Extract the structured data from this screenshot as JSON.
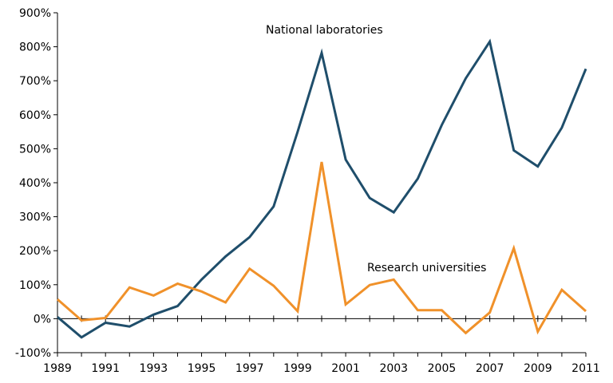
{
  "chart_data": {
    "type": "line",
    "x": [
      1989,
      1990,
      1991,
      1992,
      1993,
      1994,
      1995,
      1996,
      1997,
      1998,
      1999,
      2000,
      2001,
      2002,
      2003,
      2004,
      2005,
      2006,
      2007,
      2008,
      2009,
      2010,
      2011
    ],
    "xlim": [
      1989,
      2011
    ],
    "ylim": [
      -100,
      900
    ],
    "x_ticks": [
      "1989",
      "1991",
      "1993",
      "1995",
      "1997",
      "1999",
      "2001",
      "2003",
      "2005",
      "2007",
      "2009",
      "2011"
    ],
    "y_ticks": [
      "900%",
      "800%",
      "700%",
      "600%",
      "500%",
      "400%",
      "300%",
      "200%",
      "100%",
      "0%",
      "-100%"
    ],
    "y_tick_values": [
      900,
      800,
      700,
      600,
      500,
      400,
      300,
      200,
      100,
      0,
      -100
    ],
    "grid": false,
    "series": [
      {
        "name": "National laboratories",
        "color": "#1f4e6b",
        "values": [
          5,
          -55,
          -12,
          -23,
          12,
          37,
          115,
          183,
          240,
          330,
          550,
          782,
          468,
          355,
          313,
          412,
          570,
          707,
          815,
          495,
          448,
          562,
          735
        ]
      },
      {
        "name": "Research universities",
        "color": "#f0912a",
        "values": [
          57,
          -5,
          2,
          92,
          68,
          103,
          80,
          48,
          147,
          97,
          22,
          461,
          42,
          99,
          115,
          25,
          25,
          -42,
          18,
          207,
          -38,
          85,
          22
        ]
      }
    ]
  }
}
